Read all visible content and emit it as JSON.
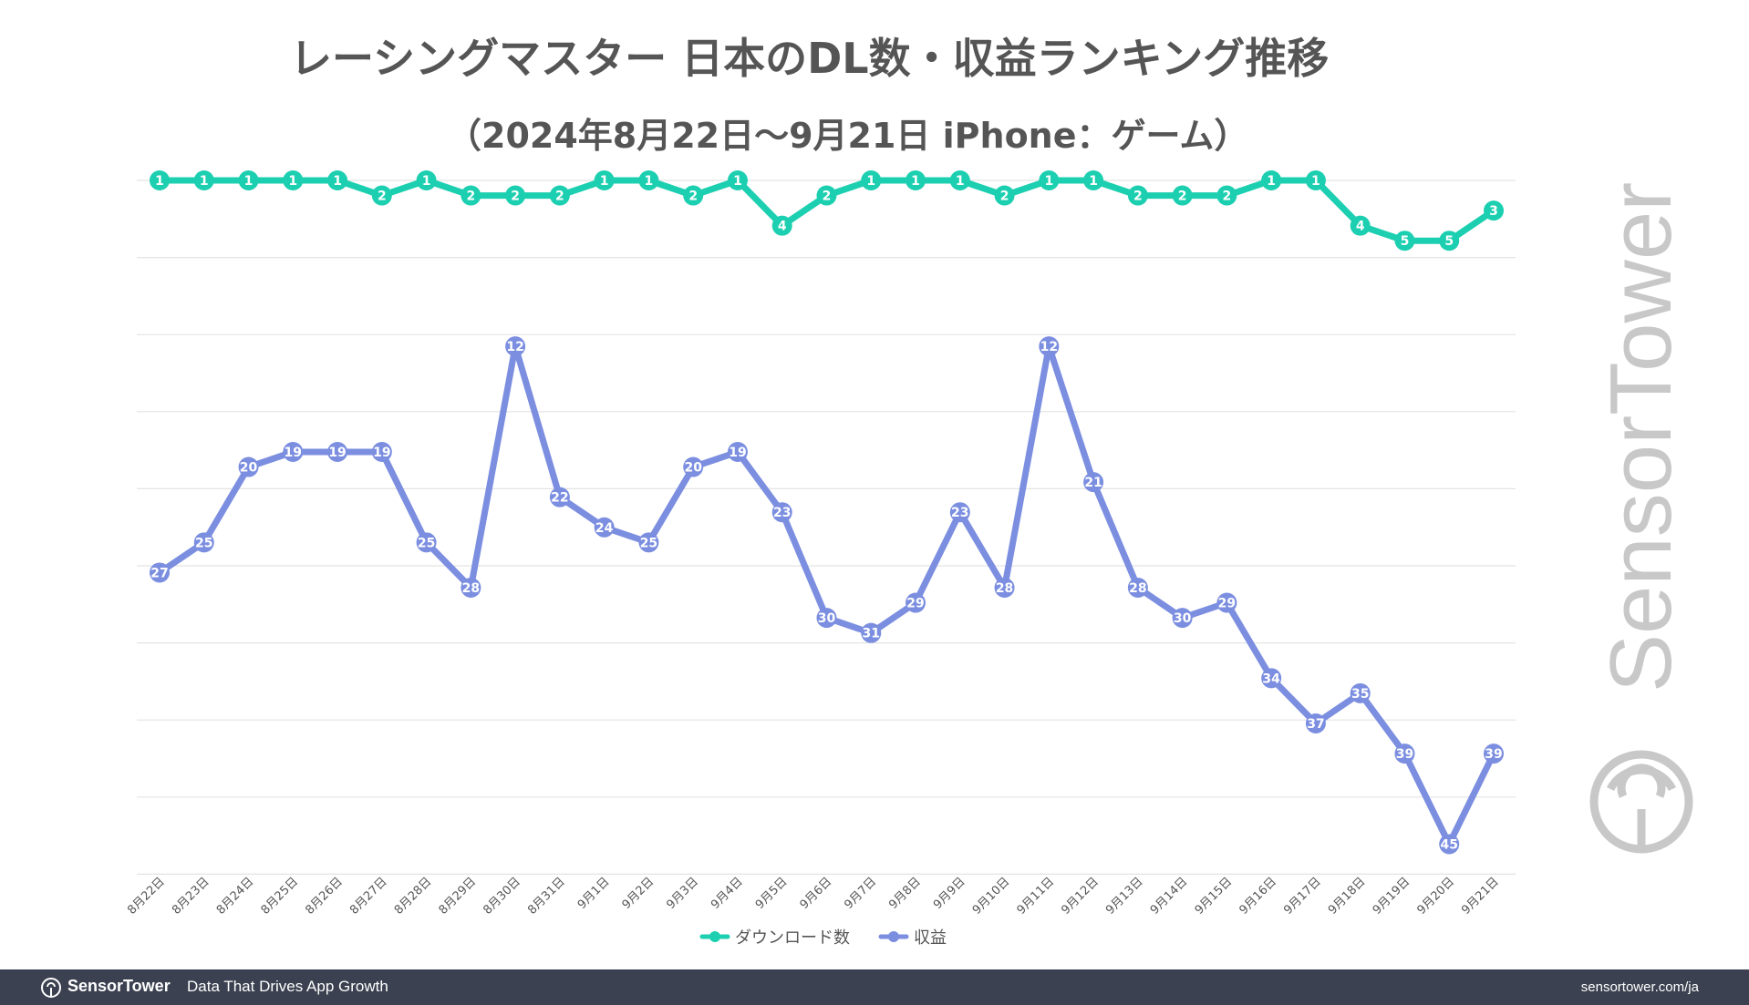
{
  "title": "レーシングマスター 日本のDL数・収益ランキング推移",
  "subtitle": "（2024年8月22日～9月21日 iPhone：ゲーム）",
  "footer": {
    "brand": "SensorTower",
    "tagline": "Data That Drives App Growth",
    "url": "sensortower.com/ja",
    "logo_icon": "sensor-tower-logo-icon"
  },
  "watermark": {
    "text": "SensorTower",
    "icon": "sensor-tower-logo-icon"
  },
  "colors": {
    "downloads": "#1ccfb0",
    "revenue": "#7b8ee0",
    "grid": "#e4e4e4",
    "text": "#555555",
    "footer_bg": "#3b4150",
    "watermark": "#c8c8c8"
  },
  "chart_data": {
    "type": "line",
    "x": [
      "8月22日",
      "8月23日",
      "8月24日",
      "8月25日",
      "8月26日",
      "8月27日",
      "8月28日",
      "8月29日",
      "8月30日",
      "8月31日",
      "9月1日",
      "9月2日",
      "9月3日",
      "9月4日",
      "9月5日",
      "9月6日",
      "9月7日",
      "9月8日",
      "9月9日",
      "9月10日",
      "9月11日",
      "9月12日",
      "9月13日",
      "9月14日",
      "9月15日",
      "9月16日",
      "9月17日",
      "9月18日",
      "9月19日",
      "9月20日",
      "9月21日"
    ],
    "series": [
      {
        "name": "ダウンロード数",
        "color": "#1ccfb0",
        "values": [
          1,
          1,
          1,
          1,
          1,
          2,
          1,
          2,
          2,
          2,
          1,
          1,
          2,
          1,
          4,
          2,
          1,
          1,
          1,
          2,
          1,
          1,
          2,
          2,
          2,
          1,
          1,
          4,
          5,
          5,
          3
        ]
      },
      {
        "name": "収益",
        "color": "#7b8ee0",
        "values": [
          27,
          25,
          20,
          19,
          19,
          19,
          25,
          28,
          12,
          22,
          24,
          25,
          20,
          19,
          23,
          30,
          31,
          29,
          23,
          28,
          12,
          21,
          28,
          30,
          29,
          34,
          37,
          35,
          39,
          45,
          39
        ]
      }
    ],
    "ylim": [
      1,
      46
    ],
    "y_inverted": true,
    "grid": true,
    "legend_position": "bottom-center"
  }
}
